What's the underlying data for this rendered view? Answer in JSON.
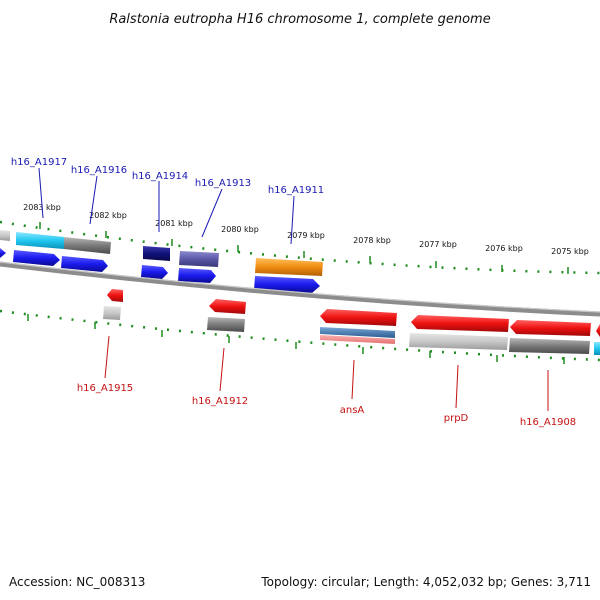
{
  "title": "Ralstonia eutropha H16 chromosome 1, complete genome",
  "ticks": [
    "2083 kbp",
    "2082 kbp",
    "2081 kbp",
    "2080 kbp",
    "2079 kbp",
    "2078 kbp",
    "2077 kbp",
    "2076 kbp",
    "2075 kbp"
  ],
  "top_labels": [
    "h16_A1917",
    "h16_A1916",
    "h16_A1914",
    "h16_A1913",
    "h16_A1911"
  ],
  "bottom_labels": [
    "h16_A1915",
    "h16_A1912",
    "ansA",
    "prpD",
    "h16_A1908"
  ],
  "footer": {
    "accession": "Accession: NC_008313",
    "summary": "Topology: circular; Length: 4,052,032 bp; Genes: 3,711"
  },
  "colors": {
    "forward_gene": "#1a1aee",
    "reverse_gene": "#ee1111",
    "cyan": "#22c8f0",
    "gray": "#8a8a8a",
    "navy": "#12127a",
    "slate": "#5a58a8",
    "orange": "#f08c10",
    "tick_green": "#1e8c1e",
    "backbone": "#8c8c8c",
    "forward_label": "#1a1ab3",
    "reverse_label": "#c41111"
  }
}
